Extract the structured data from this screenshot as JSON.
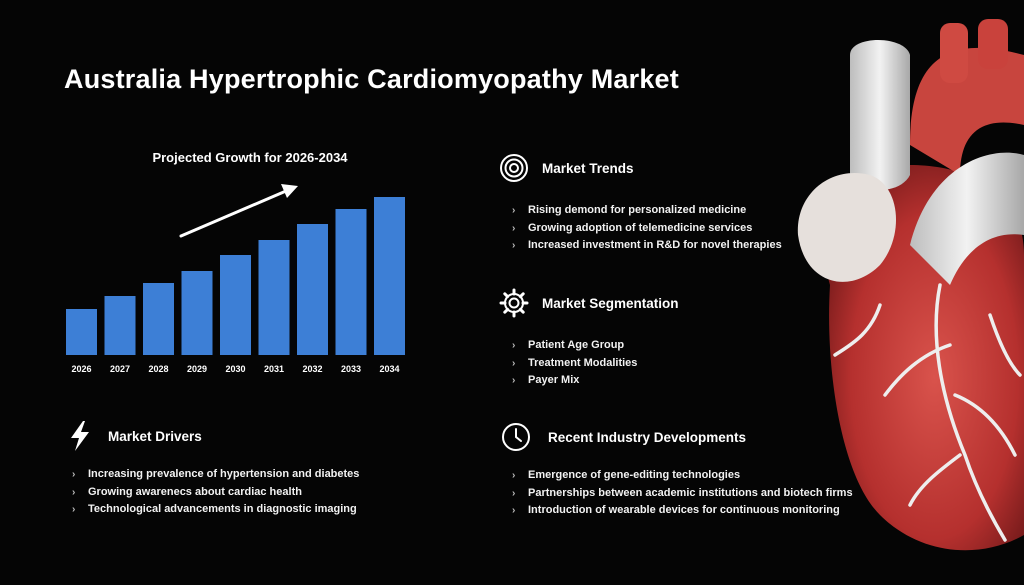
{
  "title": "Australia Hypertrophic Cardiomyopathy Market",
  "chart_data": {
    "type": "bar",
    "title": "Projected Growth for 2026-2034",
    "categories": [
      "2026",
      "2027",
      "2028",
      "2029",
      "2030",
      "2031",
      "2032",
      "2033",
      "2034"
    ],
    "values": [
      46,
      59,
      72,
      84,
      100,
      115,
      131,
      146,
      158
    ],
    "ylim": [
      0,
      160
    ],
    "xlabel": "",
    "ylabel": "",
    "bar_color": "#3d7fd6",
    "trend_arrow": true
  },
  "sections": {
    "market_trends": {
      "label": "Market Trends",
      "items": [
        "Rising demond for personalized medicine",
        "Growing adoption of telemedicine services",
        "Increased investment in R&D for novel therapies"
      ]
    },
    "market_segmentation": {
      "label": "Market Segmentation",
      "items": [
        "Patient Age Group",
        "Treatment Modalities",
        "Payer Mix"
      ]
    },
    "market_drivers": {
      "label": "Market Drivers",
      "items": [
        "Increasing prevalence of hypertension and diabetes",
        "Growing awarenecs about cardiac health",
        "Technological advancements in diagnostic imaging"
      ]
    },
    "recent_developments": {
      "label": "Recent Industry Developments",
      "items": [
        "Emergence of gene-editing technologies",
        "Partnerships between academic institutions and biotech firms",
        "Introduction of wearable devices for continuous monitoring"
      ]
    }
  },
  "icons": {
    "trends": "target-icon",
    "segmentation": "gear-icon",
    "drivers": "lightning-icon",
    "developments": "clock-icon",
    "illustration": "heart-icon"
  },
  "bullet_glyph": "›"
}
